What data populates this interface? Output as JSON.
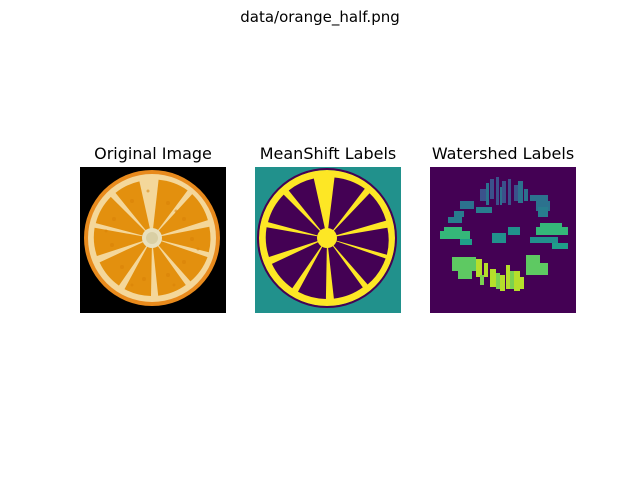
{
  "figure": {
    "suptitle": "data/orange_half.png"
  },
  "panels": [
    {
      "title": "Original Image"
    },
    {
      "title": "MeanShift Labels"
    },
    {
      "title": "Watershed Labels"
    }
  ],
  "colors": {
    "black": "#000000",
    "orange_rind": "#e8891a",
    "orange_flesh": "#e2900f",
    "pith": "#f3dfb2",
    "center": "#e4ddb8",
    "viridis_purple": "#440154",
    "viridis_teal": "#21918c",
    "viridis_yellow": "#fde725",
    "viridis_green": "#5ec962",
    "viridis_lime": "#b5de2b",
    "viridis_blue": "#3b528b",
    "viridis_cyan": "#2c728e"
  }
}
